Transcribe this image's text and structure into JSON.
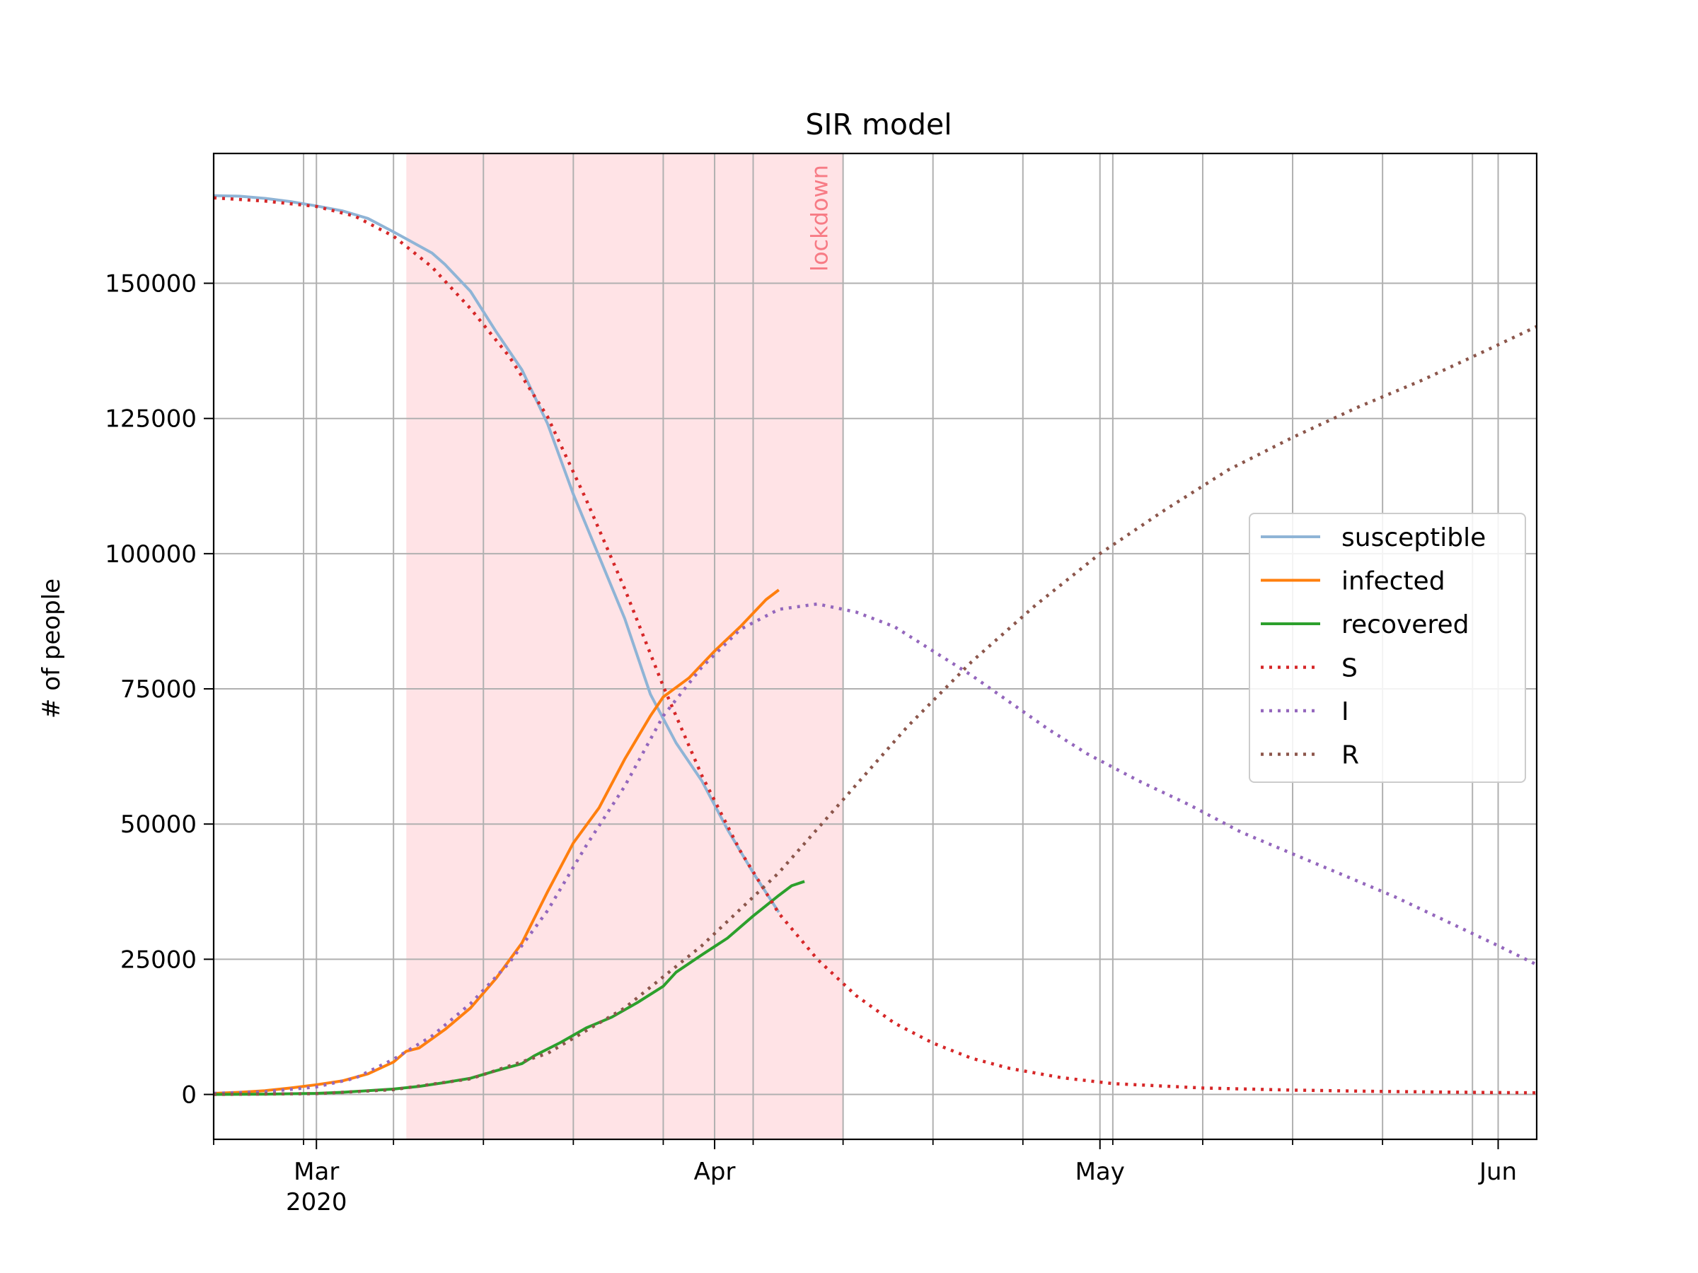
{
  "chart_data": {
    "type": "line",
    "title": "SIR model",
    "xlabel": "",
    "ylabel": "# of people",
    "x_type": "date",
    "xlim": [
      "2020-02-22",
      "2020-06-04"
    ],
    "ylim": [
      -8300,
      174000
    ],
    "grid": true,
    "legend_placement": "center-right",
    "x_major_ticks": [
      {
        "date": "2020-03-01",
        "label": "Mar",
        "sublabel": "2020"
      },
      {
        "date": "2020-04-01",
        "label": "Apr",
        "sublabel": ""
      },
      {
        "date": "2020-05-01",
        "label": "May",
        "sublabel": ""
      },
      {
        "date": "2020-06-01",
        "label": "Jun",
        "sublabel": ""
      }
    ],
    "x_minor_ticks": [
      "2020-02-22",
      "2020-02-29",
      "2020-03-07",
      "2020-03-14",
      "2020-03-21",
      "2020-03-28",
      "2020-04-04",
      "2020-04-11",
      "2020-04-18",
      "2020-04-25",
      "2020-05-02",
      "2020-05-09",
      "2020-05-16",
      "2020-05-23",
      "2020-05-30"
    ],
    "y_ticks": [
      0,
      25000,
      50000,
      75000,
      100000,
      125000,
      150000
    ],
    "shaded_regions": [
      {
        "start": "2020-03-08",
        "end": "2020-04-11",
        "color": "#ffe3e6",
        "label": "lockdown",
        "label_color": "#f77b85"
      }
    ],
    "series": [
      {
        "name": "susceptible",
        "color": "#8fb4d6",
        "style": "solid",
        "points": [
          [
            "2020-02-22",
            166200
          ],
          [
            "2020-02-24",
            166100
          ],
          [
            "2020-02-26",
            165700
          ],
          [
            "2020-02-28",
            165100
          ],
          [
            "2020-03-01",
            164300
          ],
          [
            "2020-03-03",
            163400
          ],
          [
            "2020-03-05",
            162000
          ],
          [
            "2020-03-07",
            159500
          ],
          [
            "2020-03-08",
            158200
          ],
          [
            "2020-03-10",
            155600
          ],
          [
            "2020-03-11",
            153500
          ],
          [
            "2020-03-13",
            148500
          ],
          [
            "2020-03-15",
            141000
          ],
          [
            "2020-03-17",
            134000
          ],
          [
            "2020-03-19",
            124000
          ],
          [
            "2020-03-21",
            111000
          ],
          [
            "2020-03-23",
            99500
          ],
          [
            "2020-03-25",
            88000
          ],
          [
            "2020-03-27",
            74000
          ],
          [
            "2020-03-29",
            65000
          ],
          [
            "2020-03-31",
            58000
          ],
          [
            "2020-04-02",
            49000
          ],
          [
            "2020-04-04",
            41000
          ],
          [
            "2020-04-06",
            33700
          ]
        ]
      },
      {
        "name": "infected",
        "color": "#ff7f0e",
        "style": "solid",
        "points": [
          [
            "2020-02-22",
            200
          ],
          [
            "2020-02-24",
            400
          ],
          [
            "2020-02-26",
            700
          ],
          [
            "2020-02-28",
            1200
          ],
          [
            "2020-03-01",
            1800
          ],
          [
            "2020-03-03",
            2500
          ],
          [
            "2020-03-05",
            3800
          ],
          [
            "2020-03-07",
            6000
          ],
          [
            "2020-03-08",
            8000
          ],
          [
            "2020-03-09",
            8600
          ],
          [
            "2020-03-11",
            12000
          ],
          [
            "2020-03-13",
            16000
          ],
          [
            "2020-03-15",
            21500
          ],
          [
            "2020-03-17",
            28000
          ],
          [
            "2020-03-19",
            37500
          ],
          [
            "2020-03-21",
            46500
          ],
          [
            "2020-03-23",
            53000
          ],
          [
            "2020-03-25",
            62000
          ],
          [
            "2020-03-27",
            70000
          ],
          [
            "2020-03-28",
            73500
          ],
          [
            "2020-03-30",
            77000
          ],
          [
            "2020-04-01",
            82000
          ],
          [
            "2020-04-03",
            86500
          ],
          [
            "2020-04-05",
            91500
          ],
          [
            "2020-04-06",
            93300
          ]
        ]
      },
      {
        "name": "recovered",
        "color": "#2ca02c",
        "style": "solid",
        "points": [
          [
            "2020-02-22",
            0
          ],
          [
            "2020-02-26",
            50
          ],
          [
            "2020-03-01",
            200
          ],
          [
            "2020-03-03",
            400
          ],
          [
            "2020-03-05",
            700
          ],
          [
            "2020-03-07",
            1000
          ],
          [
            "2020-03-09",
            1500
          ],
          [
            "2020-03-11",
            2200
          ],
          [
            "2020-03-13",
            3000
          ],
          [
            "2020-03-15",
            4400
          ],
          [
            "2020-03-17",
            5700
          ],
          [
            "2020-03-18",
            7200
          ],
          [
            "2020-03-20",
            9600
          ],
          [
            "2020-03-22",
            12300
          ],
          [
            "2020-03-24",
            14300
          ],
          [
            "2020-03-26",
            17000
          ],
          [
            "2020-03-28",
            20000
          ],
          [
            "2020-03-29",
            22600
          ],
          [
            "2020-03-31",
            25800
          ],
          [
            "2020-04-02",
            28900
          ],
          [
            "2020-04-04",
            33000
          ],
          [
            "2020-04-06",
            36800
          ],
          [
            "2020-04-07",
            38600
          ],
          [
            "2020-04-08",
            39400
          ]
        ]
      },
      {
        "name": "S",
        "color": "#d62728",
        "style": "dotted",
        "points": [
          [
            "2020-02-22",
            165800
          ],
          [
            "2020-02-26",
            165200
          ],
          [
            "2020-03-01",
            164200
          ],
          [
            "2020-03-04",
            162400
          ],
          [
            "2020-03-07",
            158700
          ],
          [
            "2020-03-10",
            153000
          ],
          [
            "2020-03-13",
            145300
          ],
          [
            "2020-03-16",
            136500
          ],
          [
            "2020-03-19",
            125300
          ],
          [
            "2020-03-22",
            110000
          ],
          [
            "2020-03-25",
            93500
          ],
          [
            "2020-03-28",
            75500
          ],
          [
            "2020-03-31",
            59000
          ],
          [
            "2020-04-03",
            45000
          ],
          [
            "2020-04-06",
            33500
          ],
          [
            "2020-04-09",
            25000
          ],
          [
            "2020-04-12",
            18300
          ],
          [
            "2020-04-15",
            13200
          ],
          [
            "2020-04-18",
            9500
          ],
          [
            "2020-04-21",
            6700
          ],
          [
            "2020-04-24",
            4800
          ],
          [
            "2020-04-28",
            3100
          ],
          [
            "2020-05-02",
            2000
          ],
          [
            "2020-05-09",
            1200
          ],
          [
            "2020-05-16",
            800
          ],
          [
            "2020-05-23",
            550
          ],
          [
            "2020-06-01",
            350
          ],
          [
            "2020-06-04",
            300
          ]
        ]
      },
      {
        "name": "I",
        "color": "#9467bd",
        "style": "dotted",
        "points": [
          [
            "2020-02-22",
            200
          ],
          [
            "2020-02-26",
            500
          ],
          [
            "2020-03-01",
            1400
          ],
          [
            "2020-03-04",
            3000
          ],
          [
            "2020-03-07",
            6500
          ],
          [
            "2020-03-10",
            10800
          ],
          [
            "2020-03-13",
            16800
          ],
          [
            "2020-03-16",
            24300
          ],
          [
            "2020-03-19",
            34000
          ],
          [
            "2020-03-22",
            46000
          ],
          [
            "2020-03-25",
            57000
          ],
          [
            "2020-03-28",
            70000
          ],
          [
            "2020-03-31",
            79000
          ],
          [
            "2020-04-03",
            86000
          ],
          [
            "2020-04-06",
            89700
          ],
          [
            "2020-04-09",
            90700
          ],
          [
            "2020-04-12",
            89200
          ],
          [
            "2020-04-15",
            86500
          ],
          [
            "2020-04-18",
            82000
          ],
          [
            "2020-04-21",
            77500
          ],
          [
            "2020-04-24",
            72500
          ],
          [
            "2020-04-27",
            67500
          ],
          [
            "2020-04-30",
            63000
          ],
          [
            "2020-05-04",
            58000
          ],
          [
            "2020-05-08",
            53500
          ],
          [
            "2020-05-12",
            48500
          ],
          [
            "2020-05-16",
            44500
          ],
          [
            "2020-05-20",
            40500
          ],
          [
            "2020-05-24",
            36500
          ],
          [
            "2020-05-28",
            32000
          ],
          [
            "2020-06-01",
            27500
          ],
          [
            "2020-06-04",
            24000
          ]
        ]
      },
      {
        "name": "R",
        "color": "#8c564b",
        "style": "dotted",
        "points": [
          [
            "2020-02-22",
            0
          ],
          [
            "2020-03-01",
            150
          ],
          [
            "2020-03-07",
            900
          ],
          [
            "2020-03-13",
            2900
          ],
          [
            "2020-03-19",
            7600
          ],
          [
            "2020-03-25",
            16000
          ],
          [
            "2020-03-31",
            27500
          ],
          [
            "2020-04-06",
            41000
          ],
          [
            "2020-04-11",
            54500
          ],
          [
            "2020-04-16",
            68000
          ],
          [
            "2020-04-21",
            80000
          ],
          [
            "2020-04-26",
            90500
          ],
          [
            "2020-05-01",
            100000
          ],
          [
            "2020-05-06",
            108000
          ],
          [
            "2020-05-11",
            115500
          ],
          [
            "2020-05-16",
            121500
          ],
          [
            "2020-05-21",
            127000
          ],
          [
            "2020-05-26",
            132000
          ],
          [
            "2020-05-31",
            137500
          ],
          [
            "2020-06-04",
            142000
          ]
        ]
      }
    ]
  }
}
